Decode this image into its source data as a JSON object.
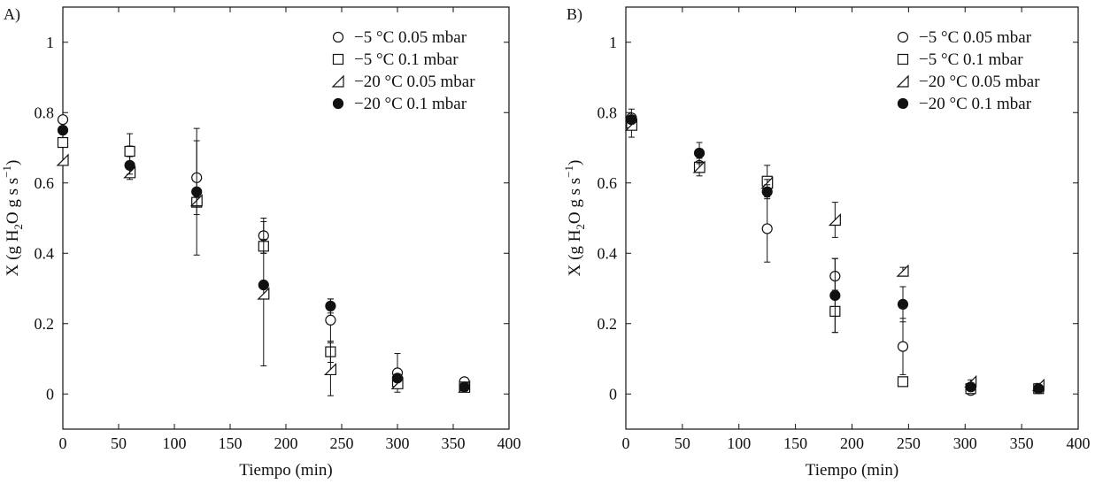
{
  "chart_data": [
    {
      "type": "scatter",
      "panel_label": "A)",
      "xlabel": "Tiempo (min)",
      "ylabel": "X (g H2O g s s-1)",
      "xlim": [
        0,
        400
      ],
      "ylim": [
        -0.1,
        1.1
      ],
      "xticks": [
        0,
        50,
        100,
        150,
        200,
        250,
        300,
        350,
        400
      ],
      "yticks": [
        0,
        0.2,
        0.4,
        0.6,
        0.8,
        1
      ],
      "ytick_labels": [
        "0",
        "0.2",
        "0.4",
        "0.6",
        "0.8",
        "1"
      ],
      "legend_position": "top-right",
      "series": [
        {
          "name": "−5 °C 0.05 mbar",
          "marker": "circle-open",
          "x": [
            0,
            60,
            120,
            180,
            240,
            300,
            360
          ],
          "y": [
            0.78,
            0.69,
            0.615,
            0.45,
            0.21,
            0.06,
            0.035
          ],
          "err": [
            0,
            0.05,
            0.105,
            0.05,
            0.06,
            0.055,
            0.005
          ]
        },
        {
          "name": "−5 °C 0.1 mbar",
          "marker": "square-open",
          "x": [
            0,
            60,
            120,
            180,
            240,
            300,
            360
          ],
          "y": [
            0.715,
            0.69,
            0.545,
            0.42,
            0.12,
            0.035,
            0.02
          ],
          "err": [
            0,
            0.015,
            0.01,
            0.02,
            0.03,
            0.01,
            0.005
          ]
        },
        {
          "name": "−20 °C 0.05 mbar",
          "marker": "triangle-open",
          "x": [
            0,
            60,
            120,
            180,
            240,
            300,
            360
          ],
          "y": [
            0.665,
            0.63,
            0.55,
            0.285,
            0.07,
            0.03,
            0.02
          ],
          "err": [
            0,
            0.02,
            0.01,
            0.205,
            0.075,
            0.015,
            0.005
          ]
        },
        {
          "name": "−20 °C 0.1 mbar",
          "marker": "circle-filled",
          "x": [
            0,
            60,
            120,
            180,
            240,
            300,
            360
          ],
          "y": [
            0.75,
            0.65,
            0.575,
            0.31,
            0.25,
            0.045,
            0.02
          ],
          "err": [
            0,
            0.025,
            0.18,
            0.01,
            0.02,
            0.01,
            0.005
          ]
        }
      ]
    },
    {
      "type": "scatter",
      "panel_label": "B)",
      "xlabel": "Tiempo (min)",
      "ylabel": "X (g H2O g s s-1)",
      "xlim": [
        0,
        400
      ],
      "ylim": [
        -0.1,
        1.1
      ],
      "xticks": [
        0,
        50,
        100,
        150,
        200,
        250,
        300,
        350,
        400
      ],
      "yticks": [
        0,
        0.2,
        0.4,
        0.6,
        0.8,
        1
      ],
      "ytick_labels": [
        "0",
        "0.2",
        "0.4",
        "0.6",
        "0.8",
        "1"
      ],
      "legend_position": "top-right",
      "series": [
        {
          "name": "−5 °C 0.05 mbar",
          "marker": "circle-open",
          "x": [
            5,
            65,
            125,
            185,
            245,
            305,
            365
          ],
          "y": [
            0.785,
            0.65,
            0.47,
            0.335,
            0.135,
            0.01,
            0.015
          ],
          "err": [
            0.01,
            0.01,
            0.095,
            0.05,
            0.08,
            0.005,
            0.005
          ]
        },
        {
          "name": "−5 °C 0.1 mbar",
          "marker": "square-open",
          "x": [
            5,
            65,
            125,
            185,
            245,
            305,
            365
          ],
          "y": [
            0.77,
            0.645,
            0.605,
            0.235,
            0.035,
            0.015,
            0.015
          ],
          "err": [
            0.04,
            0.01,
            0.045,
            0.06,
            0.005,
            0.005,
            0.005
          ]
        },
        {
          "name": "−20 °C 0.05 mbar",
          "marker": "triangle-open",
          "x": [
            5,
            65,
            125,
            185,
            245,
            305,
            365
          ],
          "y": [
            0.765,
            0.645,
            0.6,
            0.495,
            0.35,
            0.035,
            0.025
          ],
          "err": [
            0.01,
            0.025,
            0.01,
            0.05,
            0.01,
            0.005,
            0.005
          ]
        },
        {
          "name": "−20 °C 0.1 mbar",
          "marker": "circle-filled",
          "x": [
            5,
            65,
            125,
            185,
            245,
            305,
            365
          ],
          "y": [
            0.78,
            0.685,
            0.575,
            0.28,
            0.255,
            0.02,
            0.015
          ],
          "err": [
            0.01,
            0.03,
            0.02,
            0.105,
            0.05,
            0.005,
            0.005
          ]
        }
      ]
    }
  ]
}
